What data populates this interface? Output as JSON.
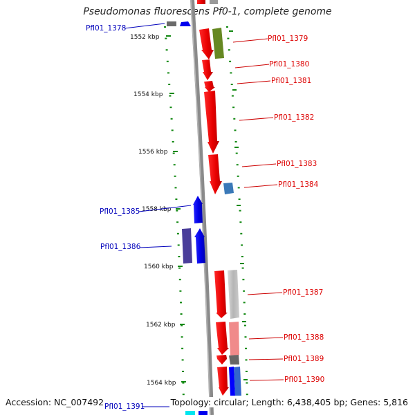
{
  "title": "Pseudomonas fluorescens Pf0-1, complete genome",
  "footer": {
    "accession": "Accession: NC_007492",
    "summary": "Topology: circular; Length: 6,438,405 bp; Genes: 5,816"
  },
  "colors": {
    "forward_label": "#dd0000",
    "reverse_label": "#0000bb",
    "backbone": "#8a8a8a",
    "dots": "#118811"
  },
  "kbp_ticks": [
    "1552 kbp",
    "1554 kbp",
    "1556 kbp",
    "1558 kbp",
    "1560 kbp",
    "1562 kbp",
    "1564 kbp"
  ],
  "genes_forward": [
    {
      "label": "Pfl01_1379"
    },
    {
      "label": "Pfl01_1380"
    },
    {
      "label": "Pfl01_1381"
    },
    {
      "label": "Pfl01_1382"
    },
    {
      "label": "Pfl01_1383"
    },
    {
      "label": "Pfl01_1384"
    },
    {
      "label": "Pfl01_1387"
    },
    {
      "label": "Pfl01_1388"
    },
    {
      "label": "Pfl01_1389"
    },
    {
      "label": "Pfl01_1390"
    }
  ],
  "genes_reverse": [
    {
      "label": "Pfl01_1378"
    },
    {
      "label": "Pfl01_1385"
    },
    {
      "label": "Pfl01_1386"
    },
    {
      "label": "Pfl01_1391"
    }
  ]
}
